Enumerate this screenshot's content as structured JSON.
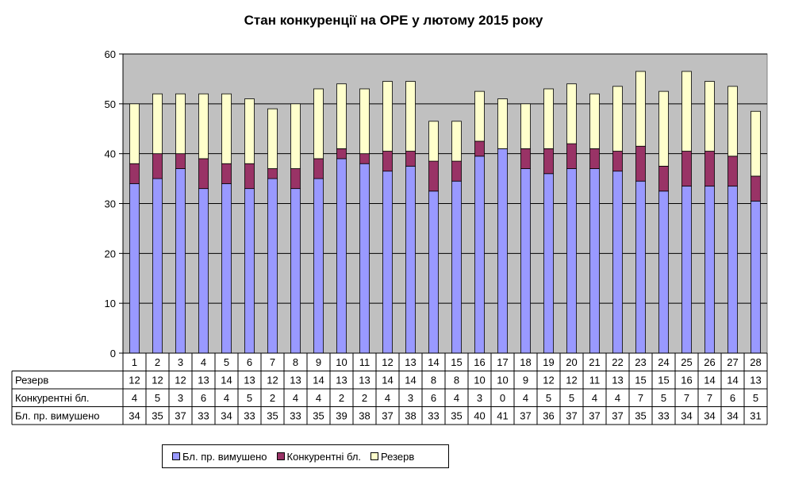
{
  "chart_data": {
    "type": "bar",
    "stacked": true,
    "title": "Стан конкуренції на ОРЕ  у лютому 2015 року",
    "xlabel": "",
    "ylabel": "",
    "ylim": [
      0,
      60
    ],
    "yticks": [
      "0",
      "10",
      "20",
      "30",
      "40",
      "50",
      "60"
    ],
    "grid": true,
    "legend_position": "bottom",
    "plot_background": "#c0c0c0",
    "categories": [
      "1",
      "2",
      "3",
      "4",
      "5",
      "6",
      "7",
      "8",
      "9",
      "10",
      "11",
      "12",
      "13",
      "14",
      "15",
      "16",
      "17",
      "18",
      "19",
      "20",
      "21",
      "22",
      "23",
      "24",
      "25",
      "26",
      "27",
      "28"
    ],
    "series": [
      {
        "name": "Бл. пр. вимушено",
        "color": "#9999ff",
        "values": [
          34,
          35,
          37,
          33,
          34,
          33,
          35,
          33,
          35,
          39,
          38,
          36.5,
          37.5,
          32.5,
          34.5,
          39.5,
          41,
          37,
          36,
          37,
          37,
          36.5,
          34.5,
          32.5,
          33.5,
          33.5,
          33.5,
          30.5
        ]
      },
      {
        "name": "Конкурентні бл.",
        "color": "#993366",
        "values": [
          4,
          5,
          3,
          6,
          4,
          5,
          2,
          4,
          4,
          2,
          2,
          4,
          3,
          6,
          4,
          3,
          0,
          4,
          5,
          5,
          4,
          4,
          7,
          5,
          7,
          7,
          6,
          5
        ]
      },
      {
        "name": "Резерв",
        "color": "#ffffcc",
        "values": [
          12,
          12,
          12,
          13,
          14,
          13,
          12,
          13,
          14,
          13,
          13,
          14,
          14,
          8,
          8,
          10,
          10,
          9,
          12,
          12,
          11,
          13,
          15,
          15,
          16,
          14,
          14,
          13
        ]
      }
    ],
    "table": {
      "rows": [
        {
          "label": "Резерв",
          "values": [
            "12",
            "12",
            "12",
            "13",
            "14",
            "13",
            "12",
            "13",
            "14",
            "13",
            "13",
            "14",
            "14",
            "8",
            "8",
            "10",
            "10",
            "9",
            "12",
            "12",
            "11",
            "13",
            "15",
            "15",
            "16",
            "14",
            "14",
            "13"
          ]
        },
        {
          "label": "Конкурентні бл.",
          "values": [
            "4",
            "5",
            "3",
            "6",
            "4",
            "5",
            "2",
            "4",
            "4",
            "2",
            "2",
            "4",
            "3",
            "6",
            "4",
            "3",
            "0",
            "4",
            "5",
            "5",
            "4",
            "4",
            "7",
            "5",
            "7",
            "7",
            "6",
            "5"
          ]
        },
        {
          "label": "Бл. пр. вимушено",
          "values": [
            "34",
            "35",
            "37",
            "33",
            "34",
            "33",
            "35",
            "33",
            "35",
            "39",
            "38",
            "37",
            "38",
            "33",
            "35",
            "40",
            "41",
            "37",
            "36",
            "37",
            "37",
            "37",
            "35",
            "33",
            "34",
            "34",
            "34",
            "31"
          ]
        }
      ]
    },
    "legend": [
      {
        "label": "Бл. пр. вимушено",
        "color": "#9999ff"
      },
      {
        "label": "Конкурентні бл.",
        "color": "#993366"
      },
      {
        "label": "Резерв",
        "color": "#ffffcc"
      }
    ]
  }
}
